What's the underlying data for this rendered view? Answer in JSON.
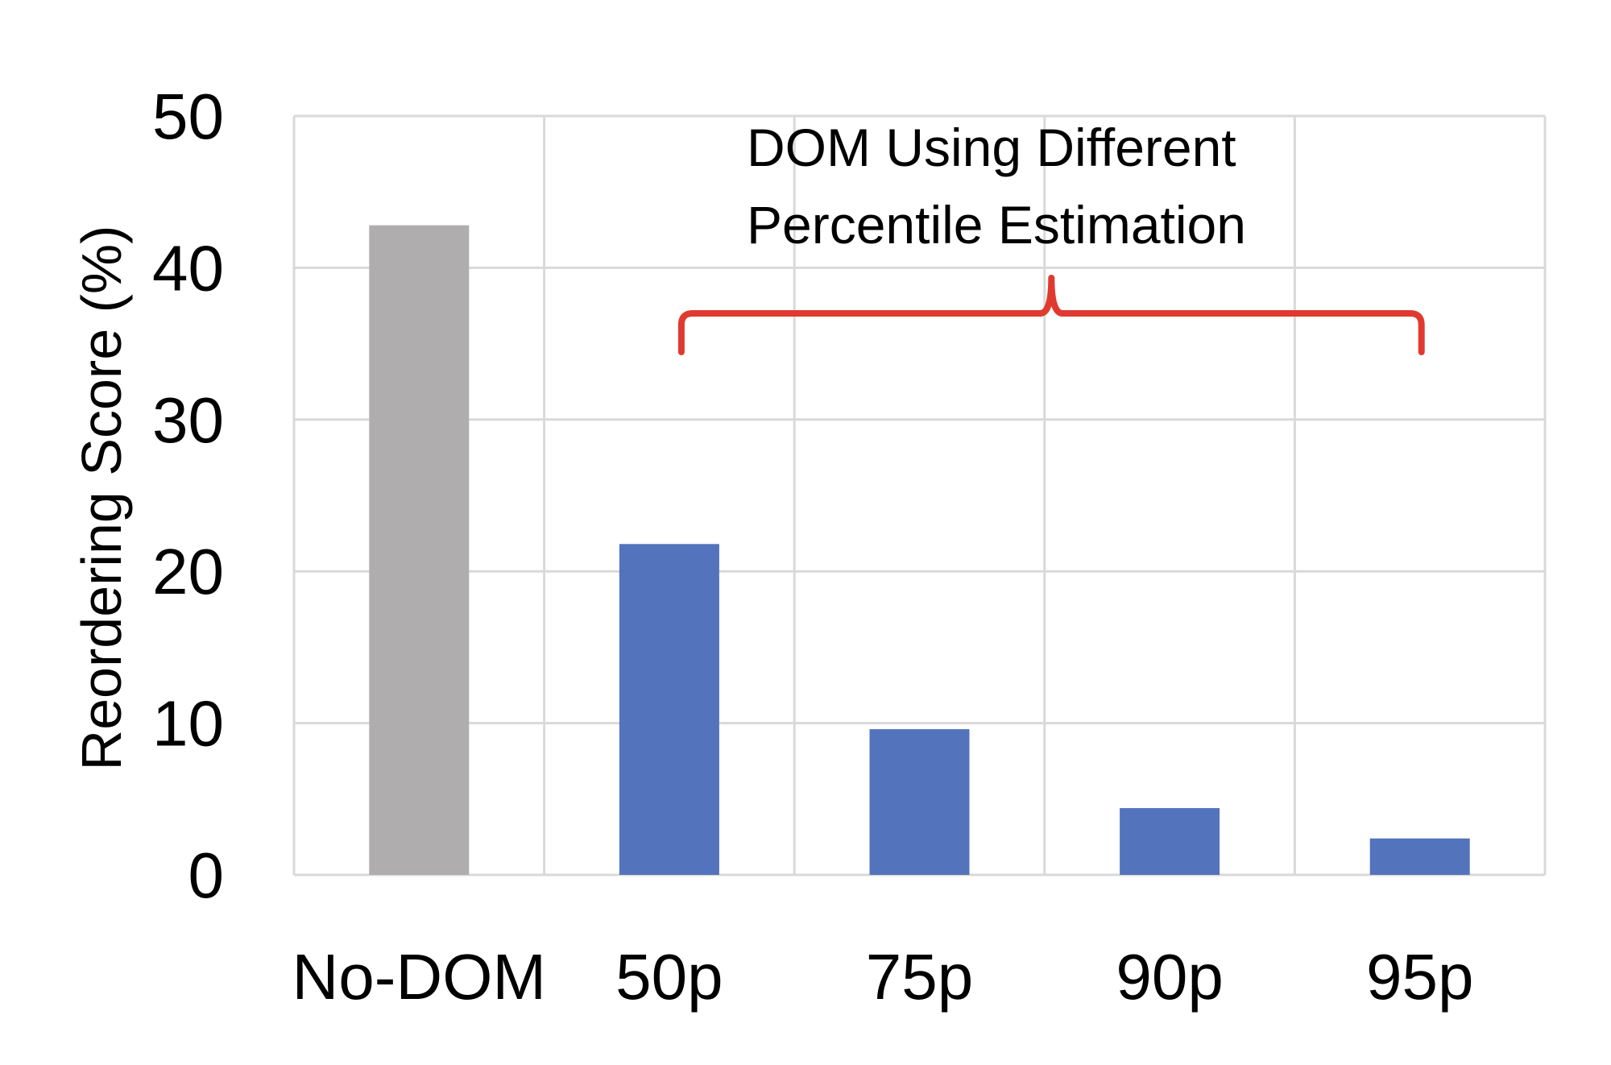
{
  "chart_data": {
    "type": "bar",
    "categories": [
      "No-DOM",
      "50p",
      "75p",
      "90p",
      "95p"
    ],
    "values": [
      42.8,
      21.8,
      9.6,
      4.4,
      2.4
    ],
    "bar_colors": [
      "#b0adae",
      "#5373bd",
      "#5373bd",
      "#5373bd",
      "#5373bd"
    ],
    "title": "",
    "xlabel": "",
    "ylabel": "Reordering Score (%)",
    "ylim": [
      0,
      50
    ],
    "yticks": [
      0,
      10,
      20,
      30,
      40,
      50
    ],
    "grid": true,
    "annotation": {
      "lines": [
        "DOM Using Different",
        "Percentile Estimation"
      ],
      "bracket_color": "#e03a30",
      "spans_categories": [
        "50p",
        "95p"
      ]
    }
  }
}
